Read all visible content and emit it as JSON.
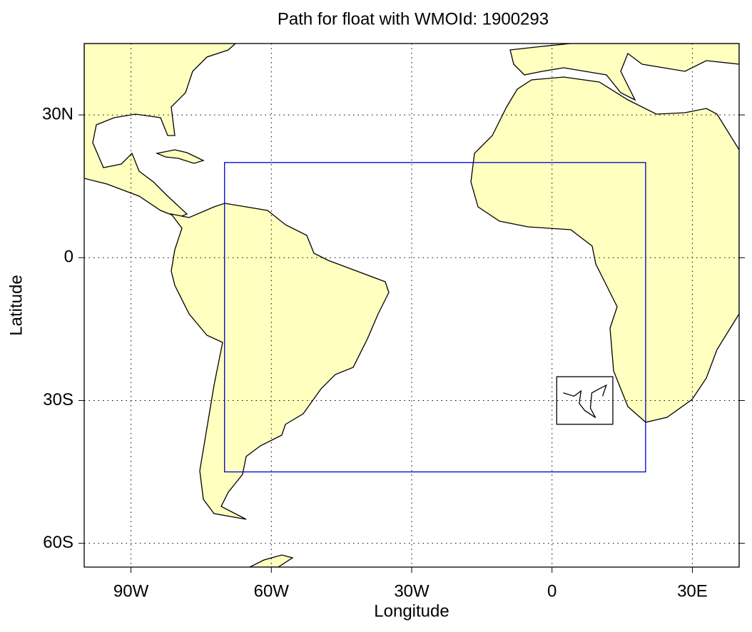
{
  "chart_data": {
    "type": "map",
    "title": "Path for float with WMOId: 1900293",
    "x_label": "Longitude",
    "y_label": "Latitude",
    "xlim": [
      -100,
      40
    ],
    "ylim": [
      -65,
      45
    ],
    "xticks": [
      {
        "value": -90,
        "label": "90W"
      },
      {
        "value": -60,
        "label": "60W"
      },
      {
        "value": -30,
        "label": "30W"
      },
      0,
      {
        "value": 30,
        "label": "30E"
      }
    ],
    "yticks": [
      {
        "value": 30,
        "label": "30N"
      },
      0,
      {
        "value": -30,
        "label": "30S"
      },
      {
        "value": -60,
        "label": "60S"
      }
    ],
    "grid": true,
    "region_box": {
      "x": [
        -70,
        20
      ],
      "y": [
        -45,
        20
      ],
      "color": "#0000cc"
    },
    "inset_box": {
      "x": [
        1,
        13
      ],
      "y": [
        -25,
        -35
      ],
      "color": "#000000"
    },
    "path": {
      "color": "#000000",
      "x": [
        2.4,
        4.7,
        6.2,
        5.8,
        7.0,
        9.3,
        8.2,
        8.5,
        10.0,
        11.6,
        10.8
      ],
      "y": [
        -28.4,
        -29.1,
        -28.0,
        -30.6,
        -32.1,
        -33.6,
        -31.6,
        -28.4,
        -27.6,
        -26.8,
        -29.1
      ]
    }
  }
}
